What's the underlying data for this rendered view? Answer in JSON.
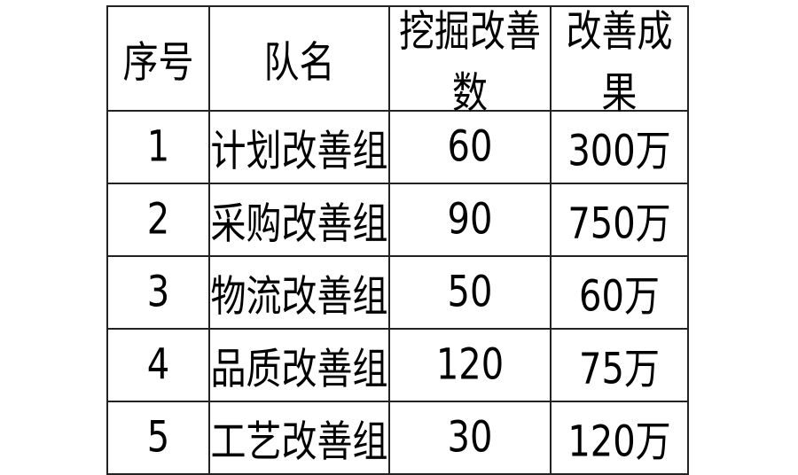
{
  "table": {
    "headers": [
      "序号",
      "队名",
      "挖掘改善数",
      "改善成果"
    ],
    "rows": [
      [
        "1",
        "计划改善组",
        "60",
        "300万"
      ],
      [
        "2",
        "采购改善组",
        "90",
        "750万"
      ],
      [
        "3",
        "物流改善组",
        "50",
        "60万"
      ],
      [
        "4",
        "品质改善组",
        "120",
        "75万"
      ],
      [
        "5",
        "工艺改善组",
        "30",
        "120万"
      ]
    ]
  }
}
